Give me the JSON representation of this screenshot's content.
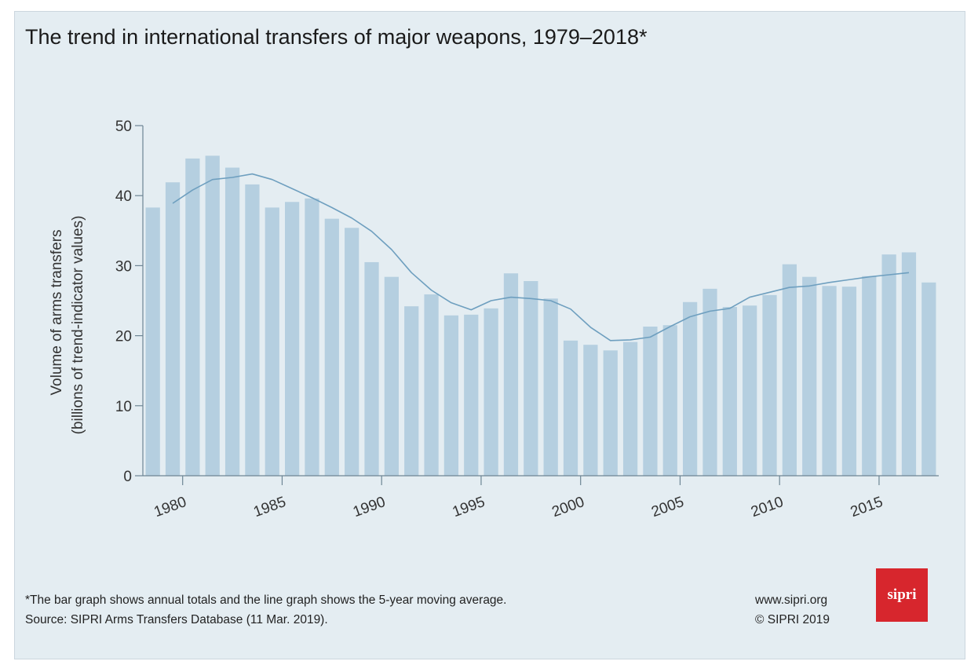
{
  "title": "The trend in international transfers of major weapons, 1979–2018*",
  "footnote": {
    "line1": "*The bar graph shows annual totals and the line graph shows the 5-year moving average.",
    "line2": "Source: SIPRI Arms Transfers Database (11 Mar. 2019)."
  },
  "credits": {
    "url": "www.sipri.org",
    "copyright": "© SIPRI 2019"
  },
  "logo": {
    "text": "sipri",
    "color": "#d7262d"
  },
  "colors": {
    "bar": "#b5cfe0",
    "line": "#6e9fbf",
    "axis": "#6d8594",
    "background": "#e4edf2"
  },
  "chart_data": {
    "type": "bar",
    "title": "The trend in international transfers of major weapons, 1979–2018*",
    "ylabel_line1": "Volume of arms transfers",
    "ylabel_line2": "(billions of trend-indicator values)",
    "xlabel": "",
    "ylim": [
      0,
      50
    ],
    "yticks": [
      0,
      10,
      20,
      30,
      40,
      50
    ],
    "xticks": [
      1980,
      1985,
      1990,
      1995,
      2000,
      2005,
      2010,
      2015
    ],
    "grid": false,
    "legend": "none",
    "categories": [
      1979,
      1980,
      1981,
      1982,
      1983,
      1984,
      1985,
      1986,
      1987,
      1988,
      1989,
      1990,
      1991,
      1992,
      1993,
      1994,
      1995,
      1996,
      1997,
      1998,
      1999,
      2000,
      2001,
      2002,
      2003,
      2004,
      2005,
      2006,
      2007,
      2008,
      2009,
      2010,
      2011,
      2012,
      2013,
      2014,
      2015,
      2016,
      2017,
      2018
    ],
    "series": [
      {
        "kind": "bar",
        "values": [
          38.3,
          41.9,
          45.3,
          45.7,
          44.0,
          41.6,
          38.3,
          39.1,
          39.6,
          36.7,
          35.4,
          30.5,
          28.4,
          24.2,
          25.9,
          22.9,
          23.0,
          23.9,
          28.9,
          27.8,
          25.3,
          19.3,
          18.7,
          17.9,
          19.1,
          21.3,
          21.5,
          24.8,
          26.7,
          24.1,
          24.3,
          25.8,
          30.2,
          28.4,
          27.1,
          27.0,
          28.5,
          31.6,
          31.9,
          27.6
        ]
      },
      {
        "kind": "line",
        "name": "5-year moving average",
        "values": [
          null,
          38.9,
          40.8,
          42.3,
          42.6,
          43.1,
          42.3,
          41.0,
          39.7,
          38.3,
          36.8,
          34.9,
          32.3,
          29.0,
          26.5,
          24.7,
          23.7,
          25.0,
          25.5,
          25.3,
          25.0,
          23.8,
          21.2,
          19.3,
          19.4,
          19.8,
          21.3,
          22.7,
          23.5,
          23.9,
          25.5,
          26.2,
          26.9,
          27.1,
          27.6,
          28.0,
          28.4,
          28.7,
          29.0,
          null
        ]
      }
    ]
  }
}
